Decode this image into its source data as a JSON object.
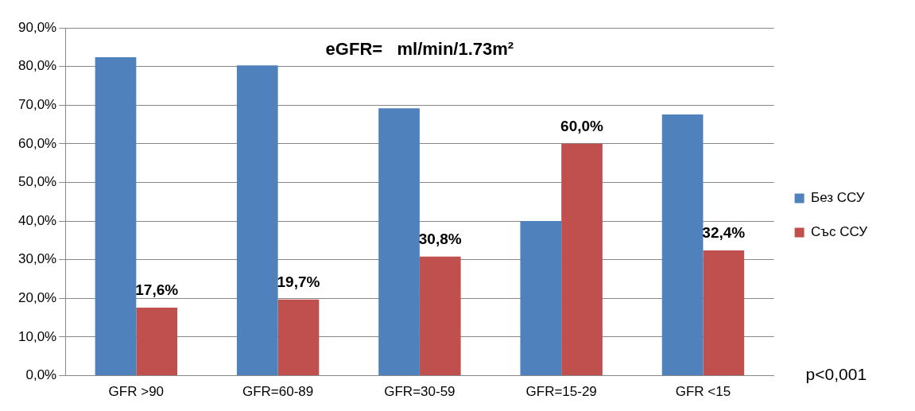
{
  "chart_data": {
    "type": "bar",
    "title": "eGFR=   ml/min/1.73m²",
    "categories": [
      "GFR >90",
      "GFR=60-89",
      "GFR=30-59",
      "GFR=15-29",
      "GFR <15"
    ],
    "series": [
      {
        "name": "Без ССУ",
        "color": "#4f81bd",
        "values": [
          82.4,
          80.3,
          69.2,
          40.0,
          67.6
        ]
      },
      {
        "name": "Със ССУ",
        "color": "#c0504d",
        "values": [
          17.6,
          19.7,
          30.8,
          60.0,
          32.4
        ],
        "value_labels": [
          "17,6%",
          "19,7%",
          "30,8%",
          "60,0%",
          "32,4%"
        ]
      }
    ],
    "ylim": [
      0,
      90
    ],
    "yticks": [
      {
        "value": 0,
        "label": "0,0%"
      },
      {
        "value": 10,
        "label": "10,0%"
      },
      {
        "value": 20,
        "label": "20,0%"
      },
      {
        "value": 30,
        "label": "30,0%"
      },
      {
        "value": 40,
        "label": "40,0%"
      },
      {
        "value": 50,
        "label": "50,0%"
      },
      {
        "value": 60,
        "label": "60,0%"
      },
      {
        "value": 70,
        "label": "70,0%"
      },
      {
        "value": 80,
        "label": "80,0%"
      },
      {
        "value": 90,
        "label": "90,0%"
      }
    ],
    "grid": "y",
    "legend": "right",
    "annotations": [
      "p<0,001"
    ]
  }
}
